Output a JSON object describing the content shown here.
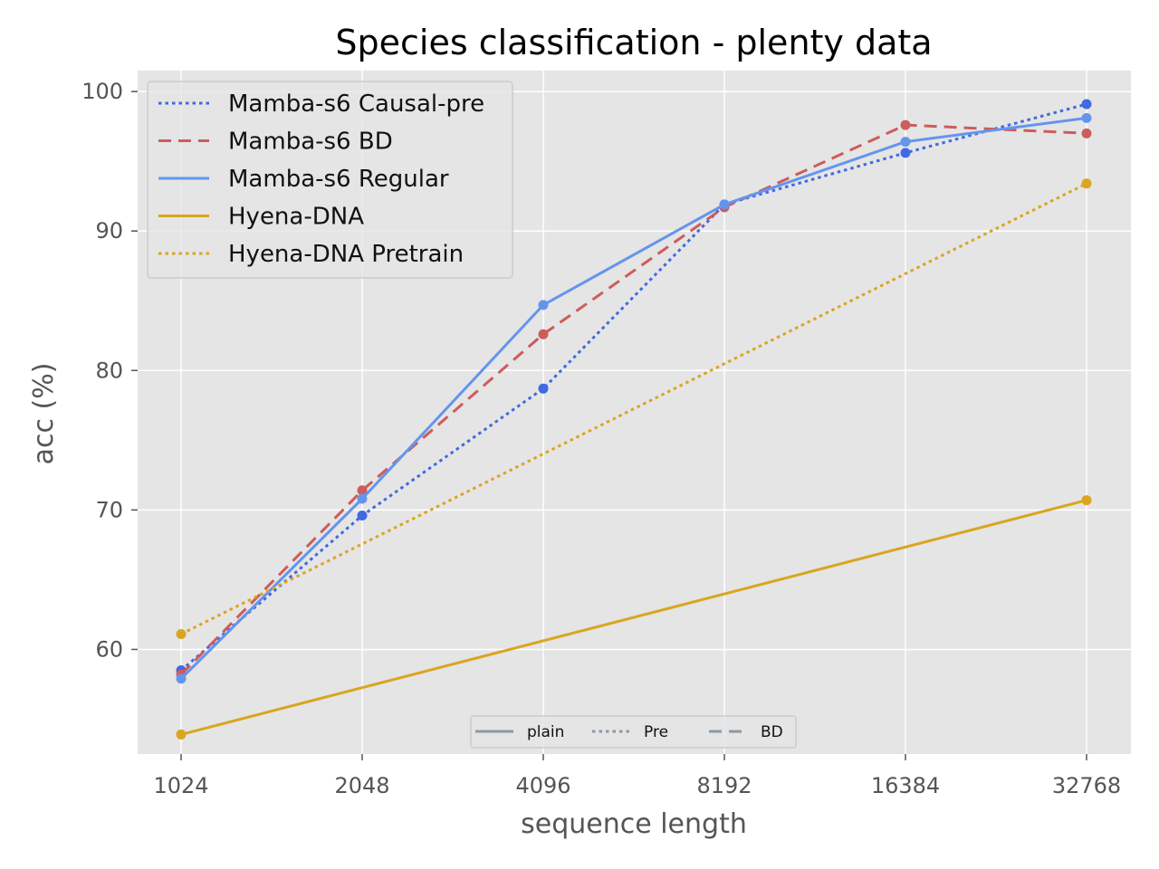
{
  "chart_data": {
    "type": "line",
    "title": "Species classification - plenty data",
    "xlabel": "sequence length",
    "ylabel": "acc (%)",
    "x_scale": "log2",
    "x": [
      1024,
      2048,
      4096,
      8192,
      16384,
      32768
    ],
    "x_tick_labels": [
      "1024",
      "2048",
      "4096",
      "8192",
      "16384",
      "32768"
    ],
    "y_ticks": [
      60,
      70,
      80,
      90,
      100
    ],
    "ylim": [
      52.5,
      101.5
    ],
    "grid": true,
    "legend_placement": "top-left",
    "series": [
      {
        "name": "Mamba-s6 Causal-pre",
        "color": "#4169e1",
        "style": "dotted",
        "points": [
          [
            1024,
            58.5
          ],
          [
            2048,
            69.6
          ],
          [
            4096,
            78.7
          ],
          [
            8192,
            91.9
          ],
          [
            16384,
            95.6
          ],
          [
            32768,
            99.1
          ]
        ]
      },
      {
        "name": "Mamba-s6 BD",
        "color": "#cd5c5c",
        "style": "dashed",
        "points": [
          [
            1024,
            58.2
          ],
          [
            2048,
            71.4
          ],
          [
            4096,
            82.6
          ],
          [
            8192,
            91.7
          ],
          [
            16384,
            97.6
          ],
          [
            32768,
            97.0
          ]
        ]
      },
      {
        "name": "Mamba-s6 Regular",
        "color": "#6495ed",
        "style": "solid",
        "points": [
          [
            1024,
            57.9
          ],
          [
            2048,
            70.8
          ],
          [
            4096,
            84.7
          ],
          [
            8192,
            91.9
          ],
          [
            16384,
            96.4
          ],
          [
            32768,
            98.1
          ]
        ]
      },
      {
        "name": "Hyena-DNA",
        "color": "#daa520",
        "style": "solid",
        "points": [
          [
            1024,
            53.9
          ],
          [
            32768,
            70.7
          ]
        ]
      },
      {
        "name": "Hyena-DNA Pretrain",
        "color": "#daa520",
        "style": "dotted",
        "points": [
          [
            1024,
            61.1
          ],
          [
            32768,
            93.4
          ]
        ]
      }
    ],
    "style_legend": {
      "placement": "bottom-center",
      "color": "#8c99a6",
      "items": [
        {
          "label": "plain",
          "style": "solid"
        },
        {
          "label": "Pre",
          "style": "dotted"
        },
        {
          "label": "BD",
          "style": "dashed"
        }
      ]
    }
  }
}
